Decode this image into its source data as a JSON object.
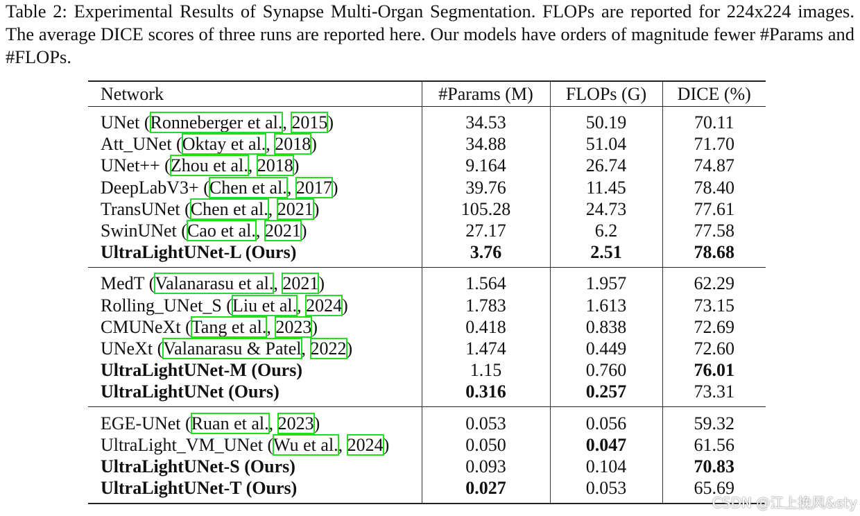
{
  "caption": "Table 2: Experimental Results of Synapse Multi-Organ Segmentation. FLOPs are reported for 224x224 images. The average DICE scores of three runs are reported here. Our models have orders of magnitude fewer #Params and #FLOPs.",
  "headers": [
    "Network",
    "#Params (M)",
    "FLOPs (G)",
    "DICE (%)"
  ],
  "groups": [
    [
      {
        "name": "UNet",
        "authors": "Ronneberger et al.",
        "year": "2015",
        "params": "34.53",
        "flops": "50.19",
        "dice": "70.11"
      },
      {
        "name": "Att_UNet",
        "authors": "Oktay et al.",
        "year": "2018",
        "params": "34.88",
        "flops": "51.04",
        "dice": "71.70"
      },
      {
        "name": "UNet++",
        "authors": "Zhou et al.",
        "year": "2018",
        "params": "9.164",
        "flops": "26.74",
        "dice": "74.87"
      },
      {
        "name": "DeepLabV3+",
        "authors": "Chen et al.",
        "year": "2017",
        "params": "39.76",
        "flops": "11.45",
        "dice": "78.40"
      },
      {
        "name": "TransUNet",
        "authors": "Chen et al.",
        "year": "2021",
        "params": "105.28",
        "flops": "24.73",
        "dice": "77.61"
      },
      {
        "name": "SwinUNet",
        "authors": "Cao et al.",
        "year": "2021",
        "params": "27.17",
        "flops": "6.2",
        "dice": "77.58"
      },
      {
        "name": "UltraLightUNet-L (Ours)",
        "params": "3.76",
        "flops": "2.51",
        "dice": "78.68"
      }
    ],
    [
      {
        "name": "MedT",
        "authors": "Valanarasu et al.",
        "year": "2021",
        "params": "1.564",
        "flops": "1.957",
        "dice": "62.29"
      },
      {
        "name": "Rolling_UNet_S",
        "authors": "Liu et al.",
        "year": "2024",
        "params": "1.783",
        "flops": "1.613",
        "dice": "73.15"
      },
      {
        "name": "CMUNeXt",
        "authors": "Tang et al.",
        "year": "2023",
        "params": "0.418",
        "flops": "0.838",
        "dice": "72.69"
      },
      {
        "name": "UNeXt",
        "authors": "Valanarasu & Patel",
        "year": "2022",
        "params": "1.474",
        "flops": "0.449",
        "dice": "72.60"
      },
      {
        "name": "UltraLightUNet-M (Ours)",
        "params": "1.15",
        "flops": "0.760",
        "dice": "76.01"
      },
      {
        "name": "UltraLightUNet (Ours)",
        "params": "0.316",
        "flops": "0.257",
        "dice": "73.31"
      }
    ],
    [
      {
        "name": "EGE-UNet",
        "authors": "Ruan et al.",
        "year": "2023",
        "params": "0.053",
        "flops": "0.056",
        "dice": "59.32"
      },
      {
        "name": "UltraLight_VM_UNet",
        "authors": "Wu et al.",
        "year": "2024",
        "params": "0.050",
        "flops": "0.047",
        "dice": "61.56"
      },
      {
        "name": "UltraLightUNet-S (Ours)",
        "params": "0.093",
        "flops": "0.104",
        "dice": "70.83"
      },
      {
        "name": "UltraLightUNet-T (Ours)",
        "params": "0.027",
        "flops": "0.053",
        "dice": "65.69"
      }
    ]
  ],
  "watermark": "CSDN @江上挽风&sty"
}
